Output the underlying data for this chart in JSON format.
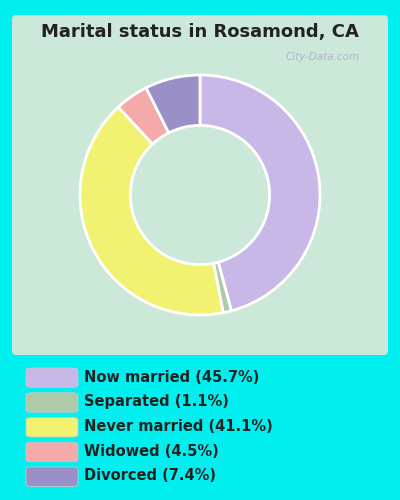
{
  "title": "Marital status in Rosamond, CA",
  "title_fontsize": 13,
  "title_color": "#222222",
  "bg_cyan": "#00efef",
  "bg_chart": "#d8eee0",
  "slices": [
    45.7,
    1.1,
    41.1,
    4.5,
    7.4
  ],
  "labels": [
    "Now married (45.7%)",
    "Separated (1.1%)",
    "Never married (41.1%)",
    "Widowed (4.5%)",
    "Divorced (7.4%)"
  ],
  "colors": [
    "#c8b8e8",
    "#adc9a8",
    "#f2f272",
    "#f5aaaa",
    "#9b8fc8"
  ],
  "legend_colors": [
    "#c8b8e8",
    "#adc9a8",
    "#f2f272",
    "#f5aaaa",
    "#9b8fc8"
  ],
  "start_angle": 90,
  "legend_fontsize": 10.5,
  "legend_text_color": "#222222",
  "watermark": "City-Data.com"
}
